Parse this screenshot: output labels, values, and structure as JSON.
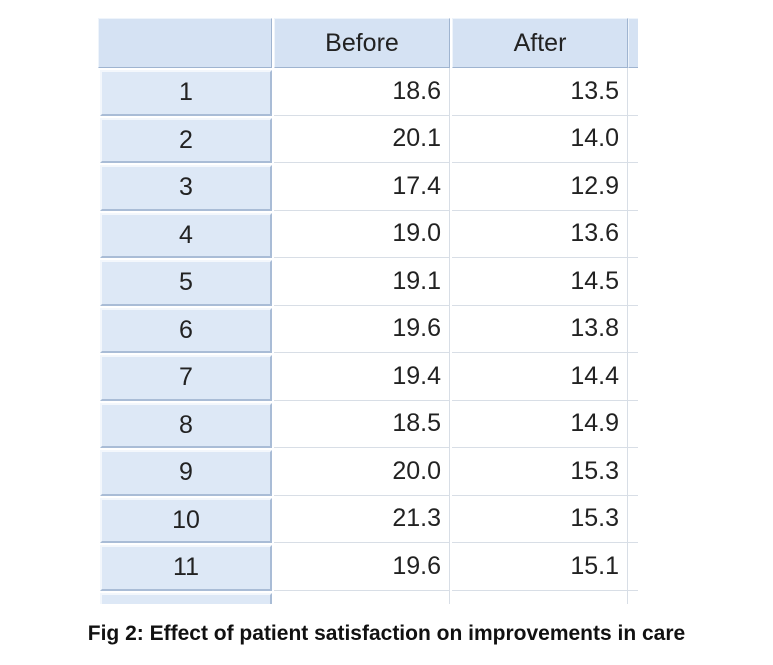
{
  "table": {
    "columns": [
      "Before",
      "After"
    ],
    "rows": [
      [
        "1",
        "18.6",
        "13.5"
      ],
      [
        "2",
        "20.1",
        "14.0"
      ],
      [
        "3",
        "17.4",
        "12.9"
      ],
      [
        "4",
        "19.0",
        "13.6"
      ],
      [
        "5",
        "19.1",
        "14.5"
      ],
      [
        "6",
        "19.6",
        "13.8"
      ],
      [
        "7",
        "19.4",
        "14.4"
      ],
      [
        "8",
        "18.5",
        "14.9"
      ],
      [
        "9",
        "20.0",
        "15.3"
      ],
      [
        "10",
        "21.3",
        "15.3"
      ],
      [
        "11",
        "19.6",
        "15.1"
      ]
    ]
  },
  "caption": "Fig 2: Effect of patient satisfaction on improvements in care"
}
